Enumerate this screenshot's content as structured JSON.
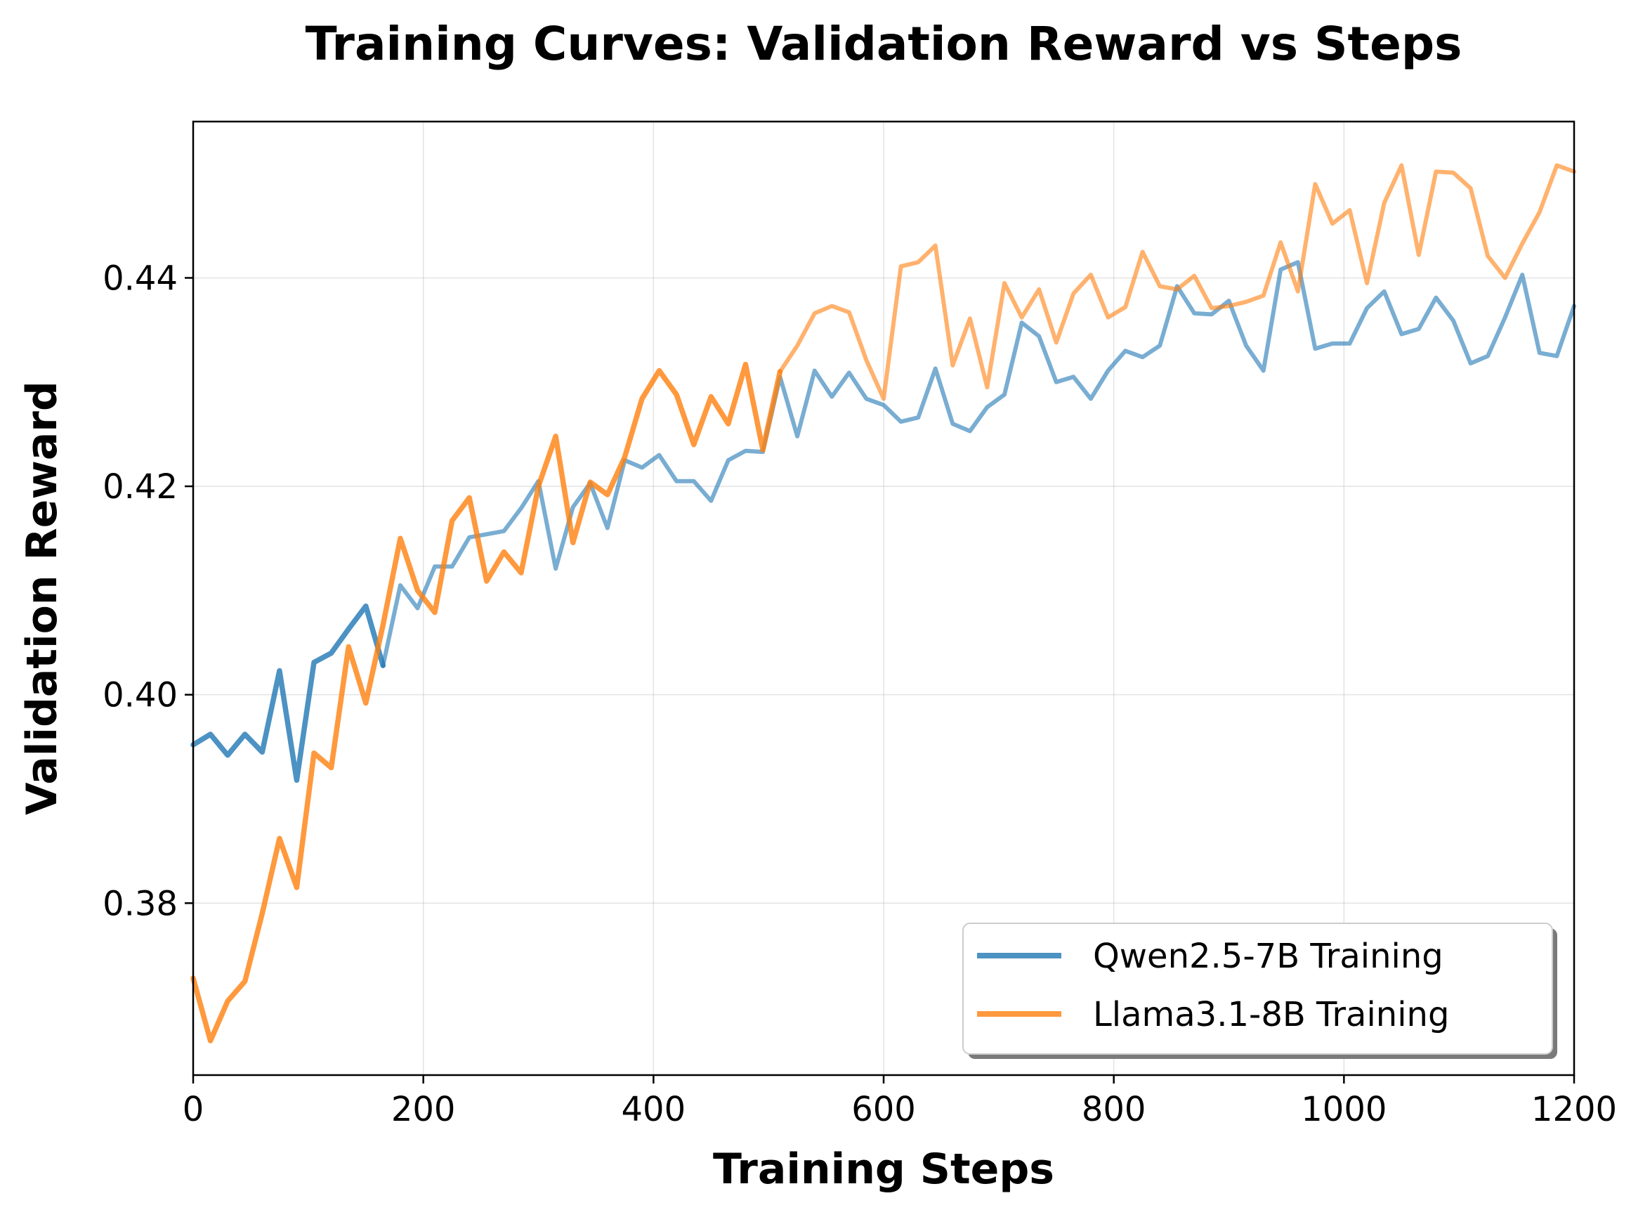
{
  "chart_data": {
    "type": "line",
    "title": "Training Curves: Validation Reward vs Steps",
    "xlabel": "Training Steps",
    "ylabel": "Validation Reward",
    "xlim": [
      0,
      1200
    ],
    "ylim": [
      0.3635,
      0.455
    ],
    "xticks": [
      0,
      200,
      400,
      600,
      800,
      1000,
      1200
    ],
    "xtick_labels": [
      "0",
      "200",
      "400",
      "600",
      "800",
      "1000",
      "1200"
    ],
    "yticks": [
      0.38,
      0.4,
      0.42,
      0.44
    ],
    "ytick_labels": [
      "0.38",
      "0.40",
      "0.42",
      "0.44"
    ],
    "grid": true,
    "legend_position": "lower-right",
    "series": [
      {
        "name": "Qwen2.5-7B Training",
        "color": "#1f77b4",
        "bold_until": 165,
        "x": [
          0,
          15,
          30,
          45,
          60,
          75,
          90,
          105,
          120,
          135,
          150,
          165,
          180,
          195,
          210,
          225,
          240,
          255,
          270,
          285,
          300,
          315,
          330,
          345,
          360,
          375,
          390,
          405,
          420,
          435,
          450,
          465,
          480,
          495,
          510,
          525,
          540,
          555,
          570,
          585,
          600,
          615,
          630,
          645,
          660,
          675,
          690,
          705,
          720,
          735,
          750,
          765,
          780,
          795,
          810,
          825,
          840,
          855,
          870,
          885,
          900,
          915,
          930,
          945,
          960,
          975,
          990,
          1005,
          1020,
          1035,
          1050,
          1065,
          1080,
          1095,
          1110,
          1125,
          1140,
          1155,
          1170,
          1185,
          1200
        ],
        "y": [
          0.3952,
          0.3962,
          0.3942,
          0.3962,
          0.3945,
          0.4023,
          0.3918,
          0.4031,
          0.404,
          0.4063,
          0.4085,
          0.4028,
          0.4105,
          0.4083,
          0.4123,
          0.4123,
          0.4151,
          0.4154,
          0.4157,
          0.4179,
          0.4205,
          0.4121,
          0.418,
          0.4203,
          0.416,
          0.4225,
          0.4218,
          0.423,
          0.4205,
          0.4205,
          0.4186,
          0.4225,
          0.4234,
          0.4233,
          0.4305,
          0.4248,
          0.4311,
          0.4286,
          0.4309,
          0.4284,
          0.4278,
          0.4262,
          0.4266,
          0.4313,
          0.426,
          0.4253,
          0.4276,
          0.4288,
          0.4357,
          0.4344,
          0.43,
          0.4305,
          0.4284,
          0.4311,
          0.433,
          0.4324,
          0.4335,
          0.4392,
          0.4366,
          0.4365,
          0.4378,
          0.4335,
          0.4311,
          0.4408,
          0.4415,
          0.4332,
          0.4337,
          0.4337,
          0.4371,
          0.4387,
          0.4346,
          0.4351,
          0.4381,
          0.4359,
          0.4318,
          0.4325,
          0.4362,
          0.4403,
          0.4328,
          0.4325,
          0.4373
        ]
      },
      {
        "name": "Llama3.1-8B Training",
        "color": "#ff7f0e",
        "bold_until": 510,
        "x": [
          0,
          15,
          30,
          45,
          60,
          75,
          90,
          105,
          120,
          135,
          150,
          165,
          180,
          195,
          210,
          225,
          240,
          255,
          270,
          285,
          300,
          315,
          330,
          345,
          360,
          375,
          390,
          405,
          420,
          435,
          450,
          465,
          480,
          495,
          510,
          525,
          540,
          555,
          570,
          585,
          600,
          615,
          630,
          645,
          660,
          675,
          690,
          705,
          720,
          735,
          750,
          765,
          780,
          795,
          810,
          825,
          840,
          855,
          870,
          885,
          900,
          915,
          930,
          945,
          960,
          975,
          990,
          1005,
          1020,
          1035,
          1050,
          1065,
          1080,
          1095,
          1110,
          1125,
          1140,
          1155,
          1170,
          1185,
          1200
        ],
        "y": [
          0.3728,
          0.3668,
          0.3706,
          0.3725,
          0.379,
          0.3862,
          0.3815,
          0.3944,
          0.393,
          0.4046,
          0.3992,
          0.4067,
          0.415,
          0.41,
          0.4079,
          0.4167,
          0.4189,
          0.4109,
          0.4137,
          0.4117,
          0.42,
          0.4248,
          0.4146,
          0.4204,
          0.4192,
          0.4228,
          0.4284,
          0.4311,
          0.4288,
          0.424,
          0.4286,
          0.426,
          0.4317,
          0.4235,
          0.431,
          0.4335,
          0.4366,
          0.4373,
          0.4367,
          0.4321,
          0.4284,
          0.4411,
          0.4415,
          0.4431,
          0.4316,
          0.4361,
          0.4295,
          0.4395,
          0.4362,
          0.4389,
          0.4338,
          0.4385,
          0.4403,
          0.4362,
          0.4372,
          0.4425,
          0.4392,
          0.4389,
          0.4402,
          0.4371,
          0.4373,
          0.4377,
          0.4383,
          0.4434,
          0.4387,
          0.449,
          0.4452,
          0.4465,
          0.4395,
          0.4472,
          0.4508,
          0.4422,
          0.4502,
          0.4501,
          0.4486,
          0.4421,
          0.44,
          0.4433,
          0.4463,
          0.4508,
          0.4502
        ]
      }
    ]
  }
}
